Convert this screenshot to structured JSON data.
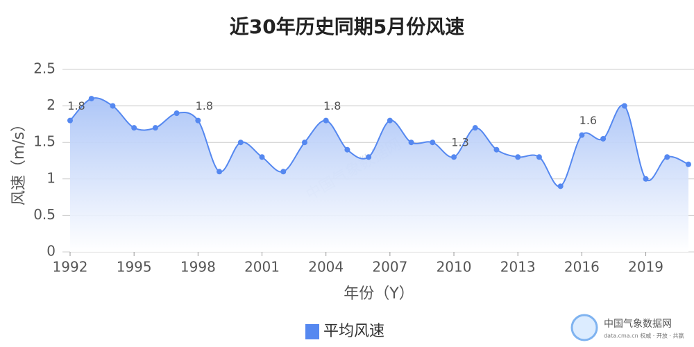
{
  "chart_data": {
    "type": "line",
    "title": "近30年历史同期5月份风速",
    "x": [
      1992,
      1993,
      1994,
      1995,
      1996,
      1997,
      1998,
      1999,
      2000,
      2001,
      2002,
      2003,
      2004,
      2005,
      2006,
      2007,
      2008,
      2009,
      2010,
      2011,
      2012,
      2013,
      2014,
      2015,
      2016,
      2017,
      2018,
      2019,
      2020,
      2021
    ],
    "series": [
      {
        "name": "平均风速",
        "color": "#5588f0",
        "values": [
          1.8,
          2.1,
          2.0,
          1.7,
          1.7,
          1.9,
          1.8,
          1.1,
          1.5,
          1.3,
          1.1,
          1.5,
          1.8,
          1.4,
          1.3,
          1.8,
          1.5,
          1.5,
          1.3,
          1.7,
          1.4,
          1.3,
          1.3,
          0.9,
          1.6,
          1.55,
          2.0,
          1.0,
          1.3,
          1.2
        ],
        "value_labels": [
          "1.8",
          null,
          null,
          null,
          null,
          null,
          "1.8",
          null,
          null,
          null,
          null,
          null,
          "1.8",
          null,
          null,
          null,
          null,
          null,
          "1.3",
          null,
          null,
          null,
          null,
          null,
          "1.6",
          null,
          null,
          null,
          null,
          null
        ]
      }
    ],
    "xlim": [
      1992,
      2021
    ],
    "xticks": [
      1992,
      1995,
      1998,
      2001,
      2004,
      2007,
      2010,
      2013,
      2016,
      2019
    ],
    "ylim": [
      0,
      2.5
    ],
    "yticks": [
      0,
      0.5,
      1,
      1.5,
      2,
      2.5
    ],
    "xlabel": "年份（Y）",
    "ylabel": "风速（m/s）",
    "grid": true,
    "area": true,
    "watermark": "中国气象数据网",
    "logo_title": "中国气象数据网",
    "logo_subtitle": "data.cma.cn 权威 · 开放 · 共赢"
  }
}
